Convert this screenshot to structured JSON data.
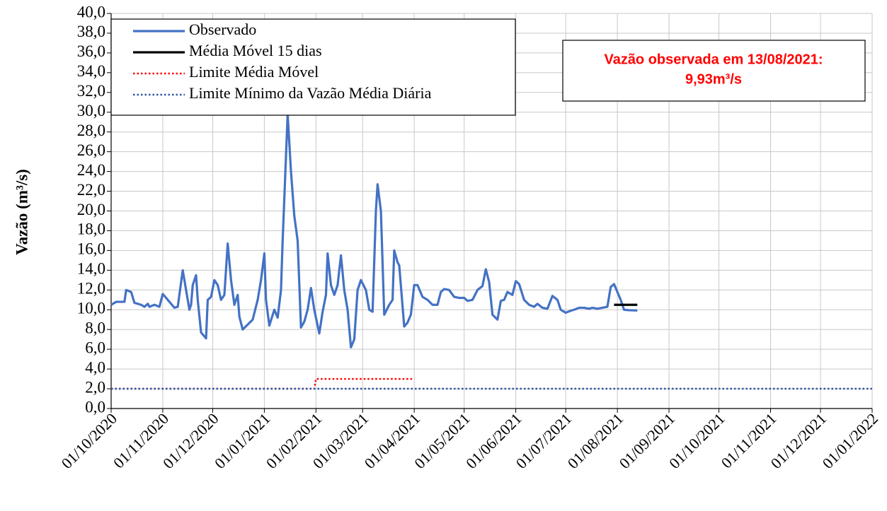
{
  "chart_data": {
    "type": "line",
    "y_label": "Vazão (m³/s)",
    "annotation": [
      "Vazão observada em 13/08/2021:",
      "9,93m³/s"
    ],
    "legend_position": "upper left",
    "grid": true,
    "xlim": [
      "01/10/2020",
      "01/01/2022"
    ],
    "xticks": [
      "01/10/2020",
      "01/11/2020",
      "01/12/2020",
      "01/01/2021",
      "01/02/2021",
      "01/03/2021",
      "01/04/2021",
      "01/05/2021",
      "01/06/2021",
      "01/07/2021",
      "01/08/2021",
      "01/09/2021",
      "01/10/2021",
      "01/11/2021",
      "01/12/2021",
      "01/01/2022"
    ],
    "ylim": [
      0,
      40
    ],
    "yticks": [
      {
        "value": 0,
        "label": "0,0"
      },
      {
        "value": 2,
        "label": "2,0"
      },
      {
        "value": 4,
        "label": "4,0"
      },
      {
        "value": 6,
        "label": "6,0"
      },
      {
        "value": 8,
        "label": "8,0"
      },
      {
        "value": 10,
        "label": "10,0"
      },
      {
        "value": 12,
        "label": "12,0"
      },
      {
        "value": 14,
        "label": "14,0"
      },
      {
        "value": 16,
        "label": "16,0"
      },
      {
        "value": 18,
        "label": "18,0"
      },
      {
        "value": 20,
        "label": "20,0"
      },
      {
        "value": 22,
        "label": "22,0"
      },
      {
        "value": 24,
        "label": "24,0"
      },
      {
        "value": 26,
        "label": "26,0"
      },
      {
        "value": 28,
        "label": "28,0"
      },
      {
        "value": 30,
        "label": "30,0"
      },
      {
        "value": 32,
        "label": "32,0"
      },
      {
        "value": 34,
        "label": "34,0"
      },
      {
        "value": 36,
        "label": "36,0"
      },
      {
        "value": 38,
        "label": "38,0"
      },
      {
        "value": 40,
        "label": "40,0"
      }
    ],
    "series": [
      {
        "name": "Observado",
        "color": "#4472c4",
        "line_style": "solid",
        "x": [
          "01/10/2020",
          "04/10/2020",
          "09/10/2020",
          "10/10/2020",
          "13/10/2020",
          "15/10/2020",
          "19/10/2020",
          "21/10/2020",
          "23/10/2020",
          "24/10/2020",
          "27/10/2020",
          "30/10/2020",
          "01/11/2020",
          "04/11/2020",
          "08/11/2020",
          "10/11/2020",
          "13/11/2020",
          "15/11/2020",
          "17/11/2020",
          "18/11/2020",
          "19/11/2020",
          "21/11/2020",
          "22/11/2020",
          "24/11/2020",
          "27/11/2020",
          "28/11/2020",
          "30/11/2020",
          "02/12/2020",
          "04/12/2020",
          "06/12/2020",
          "08/12/2020",
          "10/12/2020",
          "12/12/2020",
          "14/12/2020",
          "16/12/2020",
          "17/12/2020",
          "19/12/2020",
          "22/12/2020",
          "25/12/2020",
          "28/12/2020",
          "30/12/2020",
          "01/01/2021",
          "02/01/2021",
          "04/01/2021",
          "07/01/2021",
          "09/01/2021",
          "11/01/2021",
          "12/01/2021",
          "15/01/2021",
          "17/01/2021",
          "19/01/2021",
          "21/01/2021",
          "23/01/2021",
          "25/01/2021",
          "27/01/2021",
          "29/01/2021",
          "31/01/2021",
          "03/02/2021",
          "05/02/2021",
          "07/02/2021",
          "08/02/2021",
          "10/02/2021",
          "12/02/2021",
          "14/02/2021",
          "16/02/2021",
          "18/02/2021",
          "20/02/2021",
          "22/02/2021",
          "24/02/2021",
          "26/02/2021",
          "28/02/2021",
          "03/03/2021",
          "05/03/2021",
          "07/03/2021",
          "09/03/2021",
          "10/03/2021",
          "12/03/2021",
          "14/03/2021",
          "17/03/2021",
          "19/03/2021",
          "20/03/2021",
          "22/03/2021",
          "23/03/2021",
          "26/03/2021",
          "28/03/2021",
          "30/03/2021",
          "01/04/2021",
          "03/04/2021",
          "06/04/2021",
          "09/04/2021",
          "12/04/2021",
          "15/04/2021",
          "17/04/2021",
          "19/04/2021",
          "22/04/2021",
          "25/04/2021",
          "28/04/2021",
          "01/05/2021",
          "03/05/2021",
          "06/05/2021",
          "09/05/2021",
          "12/05/2021",
          "14/05/2021",
          "16/05/2021",
          "18/05/2021",
          "21/05/2021",
          "23/05/2021",
          "25/05/2021",
          "27/05/2021",
          "30/05/2021",
          "01/06/2021",
          "03/06/2021",
          "06/06/2021",
          "09/06/2021",
          "12/06/2021",
          "14/06/2021",
          "17/06/2021",
          "20/06/2021",
          "23/06/2021",
          "26/06/2021",
          "28/06/2021",
          "01/07/2021",
          "04/07/2021",
          "06/07/2021",
          "09/07/2021",
          "12/07/2021",
          "15/07/2021",
          "17/07/2021",
          "20/07/2021",
          "23/07/2021",
          "26/07/2021",
          "28/07/2021",
          "30/07/2021",
          "03/08/2021",
          "05/08/2021",
          "08/08/2021",
          "13/08/2021"
        ],
        "values": [
          10.5,
          10.8,
          10.8,
          12.0,
          11.8,
          10.7,
          10.5,
          10.3,
          10.6,
          10.3,
          10.5,
          10.3,
          11.6,
          11.0,
          10.2,
          10.3,
          14.0,
          12.0,
          10.0,
          10.5,
          12.5,
          13.5,
          11.0,
          7.7,
          7.1,
          11.0,
          11.3,
          13.0,
          12.5,
          11.0,
          11.5,
          16.7,
          13.0,
          10.5,
          11.5,
          9.3,
          8.0,
          8.5,
          9.0,
          11.0,
          13.0,
          15.7,
          11.0,
          8.4,
          10.0,
          9.2,
          12.0,
          17.0,
          29.8,
          24.0,
          19.5,
          17.0,
          8.2,
          8.8,
          10.0,
          12.2,
          10.0,
          7.6,
          9.8,
          11.5,
          15.7,
          12.5,
          11.5,
          12.5,
          15.5,
          12.0,
          10.0,
          6.2,
          7.0,
          12.0,
          13.0,
          12.0,
          10.0,
          9.8,
          20.0,
          22.7,
          20.0,
          9.5,
          10.5,
          11.0,
          16.0,
          14.8,
          14.5,
          8.3,
          8.7,
          9.5,
          12.5,
          12.5,
          11.3,
          11.0,
          10.5,
          10.5,
          11.8,
          12.1,
          12.0,
          11.3,
          11.2,
          11.2,
          10.9,
          11.0,
          12.0,
          12.4,
          14.1,
          12.8,
          9.5,
          9.0,
          10.9,
          11.0,
          11.8,
          11.5,
          12.9,
          12.6,
          11.0,
          10.5,
          10.3,
          10.6,
          10.2,
          10.1,
          11.4,
          11.0,
          10.0,
          9.7,
          9.9,
          10.0,
          10.2,
          10.2,
          10.1,
          10.2,
          10.1,
          10.2,
          10.3,
          12.3,
          12.6,
          11.0,
          10.0,
          9.95,
          9.93
        ]
      },
      {
        "name": "Média Móvel 15 dias",
        "color": "#000000",
        "line_style": "solid",
        "x": [
          "30/07/2021",
          "13/08/2021"
        ],
        "values": [
          10.5,
          10.5
        ]
      },
      {
        "name": "Limite Média Móvel",
        "color": "#ff0000",
        "line_style": "dotted",
        "x": [
          "01/10/2020",
          "31/01/2021",
          "01/02/2021",
          "31/03/2021"
        ],
        "values": [
          2,
          2,
          3,
          3
        ]
      },
      {
        "name": "Limite Mínimo da Vazão Média Diária",
        "color": "#2f55a4",
        "line_style": "dotted",
        "x": [
          "01/10/2020",
          "01/01/2022"
        ],
        "values": [
          2,
          2
        ]
      }
    ]
  }
}
